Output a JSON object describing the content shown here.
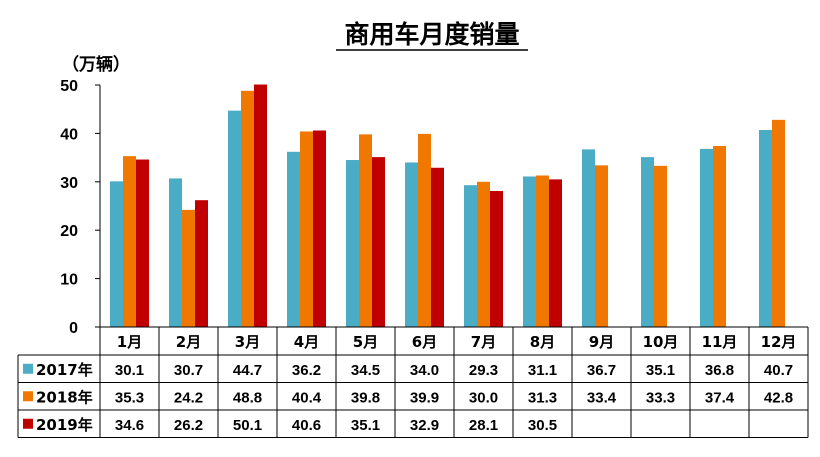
{
  "chart_data": {
    "type": "bar",
    "title": "商用车月度销量",
    "unit_label": "（万辆）",
    "ylim": [
      0,
      50
    ],
    "yticks": [
      0,
      10,
      20,
      30,
      40,
      50
    ],
    "grid": false,
    "legend": "table-left",
    "categories": [
      "1月",
      "2月",
      "3月",
      "4月",
      "5月",
      "6月",
      "7月",
      "8月",
      "9月",
      "10月",
      "11月",
      "12月"
    ],
    "series": [
      {
        "name": "2017年",
        "color": "#4BACC6",
        "values": [
          30.1,
          30.7,
          44.7,
          36.2,
          34.5,
          34.0,
          29.3,
          31.1,
          36.7,
          35.1,
          36.8,
          40.7
        ]
      },
      {
        "name": "2018年",
        "color": "#F07800",
        "values": [
          35.3,
          24.2,
          48.8,
          40.4,
          39.8,
          39.9,
          30.0,
          31.3,
          33.4,
          33.3,
          37.4,
          42.8
        ]
      },
      {
        "name": "2019年",
        "color": "#C00000",
        "values": [
          34.6,
          26.2,
          50.1,
          40.6,
          35.1,
          32.9,
          28.1,
          30.5,
          null,
          null,
          null,
          null
        ]
      }
    ]
  }
}
